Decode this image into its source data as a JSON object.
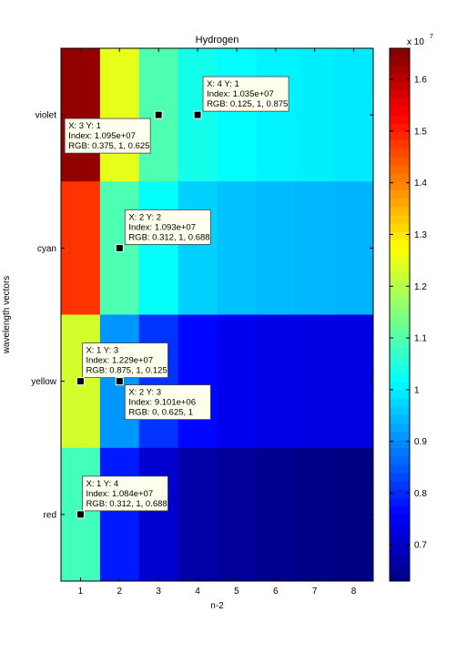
{
  "chart_data": {
    "type": "heatmap",
    "title": "Hydrogen",
    "xlabel": "n-2",
    "ylabel": "wavelength vectors",
    "x_categories": [
      "1",
      "2",
      "3",
      "4",
      "5",
      "6",
      "7",
      "8"
    ],
    "y_categories": [
      "violet",
      "cyan",
      "yellow",
      "red"
    ],
    "colormap": "jet",
    "color_range": [
      6300000.0,
      16600000.0
    ],
    "colorbar_scale_label": "x 10",
    "colorbar_scale_exponent": "7",
    "colorbar_ticks": [
      "0.7",
      "0.8",
      "0.9",
      "1",
      "1.1",
      "1.2",
      "1.3",
      "1.4",
      "1.5",
      "1.6"
    ],
    "colorbar_tick_values": [
      7000000.0,
      8000000.0,
      9000000.0,
      10000000.0,
      11000000.0,
      12000000.0,
      13000000.0,
      14000000.0,
      15000000.0,
      16000000.0
    ],
    "values": [
      [
        16400000,
        12500000,
        10950000,
        10350000,
        10150000,
        10050000,
        10000000,
        9950000
      ],
      [
        14800000,
        10930000,
        10200000,
        9700000,
        9550000,
        9480000,
        9440000,
        9400000
      ],
      [
        12290000,
        9101000,
        8100000,
        7650000,
        7450000,
        7350000,
        7300000,
        7270000
      ],
      [
        10840000,
        7850000,
        7100000,
        6700000,
        6550000,
        6450000,
        6400000,
        6350000
      ]
    ],
    "datatips": [
      {
        "line1": "X: 4 Y: 1",
        "line2": "Index: 1.035e+07",
        "line3": "RGB: 0.125, 1, 0.875",
        "x": 4,
        "y": 1
      },
      {
        "line1": "X: 3 Y: 1",
        "line2": "Index: 1.095e+07",
        "line3": "RGB: 0.375, 1, 0.625",
        "x": 3,
        "y": 1
      },
      {
        "line1": "X: 2 Y: 2",
        "line2": "Index: 1.093e+07",
        "line3": "RGB: 0.312, 1, 0.688",
        "x": 2,
        "y": 2
      },
      {
        "line1": "X: 1 Y: 3",
        "line2": "Index: 1.229e+07",
        "line3": "RGB: 0.875, 1, 0.125",
        "x": 1,
        "y": 3
      },
      {
        "line1": "X: 2 Y: 3",
        "line2": "Index: 9.101e+06",
        "line3": "RGB: 0, 0.625, 1",
        "x": 2,
        "y": 3
      },
      {
        "line1": "X: 1 Y: 4",
        "line2": "Index: 1.084e+07",
        "line3": "RGB: 0.312, 1, 0.688",
        "x": 1,
        "y": 4
      }
    ]
  }
}
